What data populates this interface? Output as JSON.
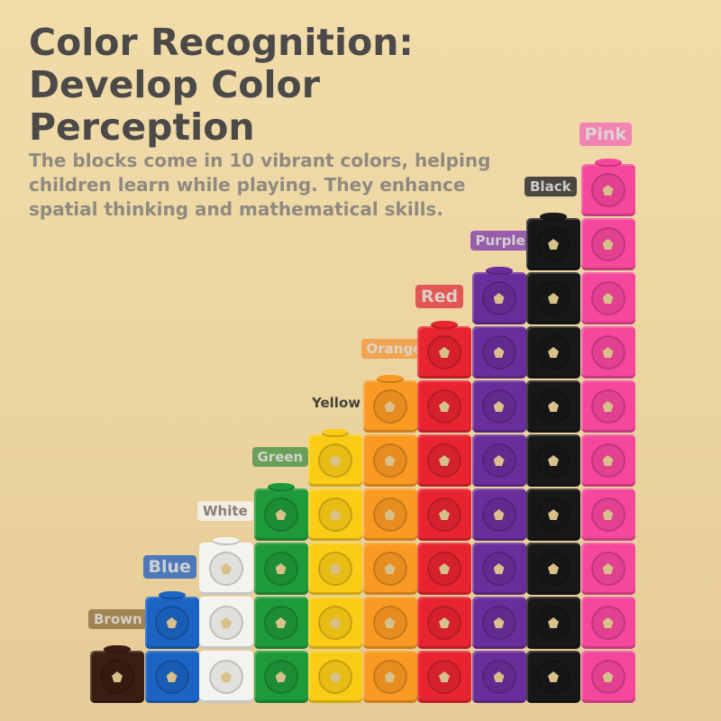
{
  "title": {
    "line1": "Color Recognition:",
    "line2": "Develop Color",
    "line3": "Perception"
  },
  "description": "The blocks come in 10 vibrant colors, helping children learn while playing. They enhance spatial thinking and mathematical skills.",
  "columns": [
    {
      "label": "Brown",
      "color": "#3b1d12",
      "label_bg": "#9a7a4c",
      "count": 1
    },
    {
      "label": "Blue",
      "color": "#1c64c4",
      "label_bg": "#3d6fbf",
      "count": 2
    },
    {
      "label": "White",
      "color": "#f5f3ef",
      "label_bg": "#f4f1ea",
      "count": 3
    },
    {
      "label": "Green",
      "color": "#1f9a3a",
      "label_bg": "#5e9a52",
      "count": 4
    },
    {
      "label": "Yellow",
      "color": "#fbcc16",
      "label_bg": "#f0b93a",
      "count": 5
    },
    {
      "label": "Orange",
      "color": "#fb9a22",
      "label_bg": "#f2a04a",
      "count": 6
    },
    {
      "label": "Red",
      "color": "#e82431",
      "label_bg": "#e24a4a",
      "count": 7
    },
    {
      "label": "Purple",
      "color": "#6a2e9c",
      "label_bg": "#8d52ad",
      "count": 8
    },
    {
      "label": "Black",
      "color": "#181818",
      "label_bg": "#3a3836",
      "count": 9
    },
    {
      "label": "Pink",
      "color": "#f5479b",
      "label_bg": "#f37ab4",
      "count": 10
    }
  ]
}
